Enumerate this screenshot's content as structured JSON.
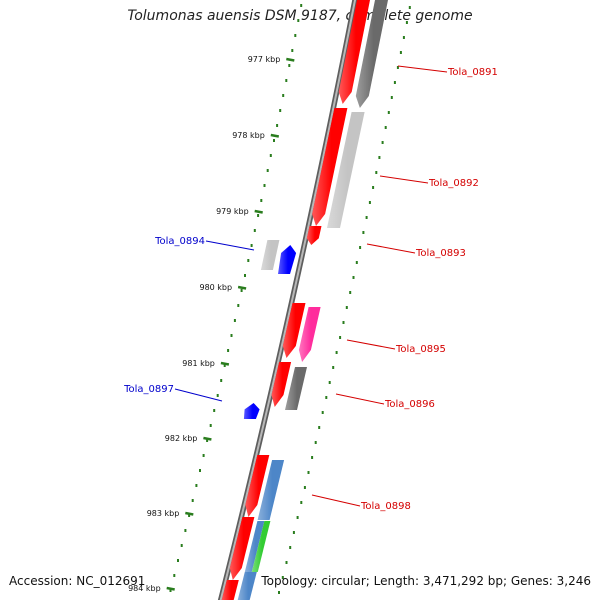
{
  "title": "Tolumonas auensis DSM 9187, complete genome",
  "accession": "Accession: NC_012691",
  "topology": "Topology: circular; Length: 3,471,292 bp; Genes: 3,246",
  "colors": {
    "backbone": "#8a8a8a",
    "ruler": "#2a7d1e",
    "label_fwd": "#d40000",
    "label_rev": "#0000cc",
    "red": "#ff0000",
    "blue": "#0000ff",
    "gray_dark": "#6a6a6a",
    "gray_light": "#c4c4c4",
    "pink": "#ff2c9c",
    "steel": "#4d86c8",
    "green": "#33cc33"
  },
  "ruler": {
    "ticks": [
      {
        "label": "977 kbp"
      },
      {
        "label": "978 kbp"
      },
      {
        "label": "979 kbp"
      },
      {
        "label": "980 kbp"
      },
      {
        "label": "981 kbp"
      },
      {
        "label": "982 kbp"
      },
      {
        "label": "983 kbp"
      },
      {
        "label": "984 kbp"
      }
    ]
  },
  "genes": [
    {
      "id": "Tola_0891",
      "color": "red",
      "strand": "+"
    },
    {
      "id": "Tola_0892",
      "color": "red",
      "strand": "+"
    },
    {
      "id": "Tola_0893",
      "color": "red",
      "strand": "+"
    },
    {
      "id": "Tola_0894",
      "color": "blue",
      "strand": "-"
    },
    {
      "id": "Tola_0895",
      "color": "red",
      "strand": "+"
    },
    {
      "id": "Tola_0896",
      "color": "red",
      "strand": "+"
    },
    {
      "id": "Tola_0897",
      "color": "blue",
      "strand": "-"
    },
    {
      "id": "Tola_0898",
      "color": "red",
      "strand": "+"
    }
  ]
}
